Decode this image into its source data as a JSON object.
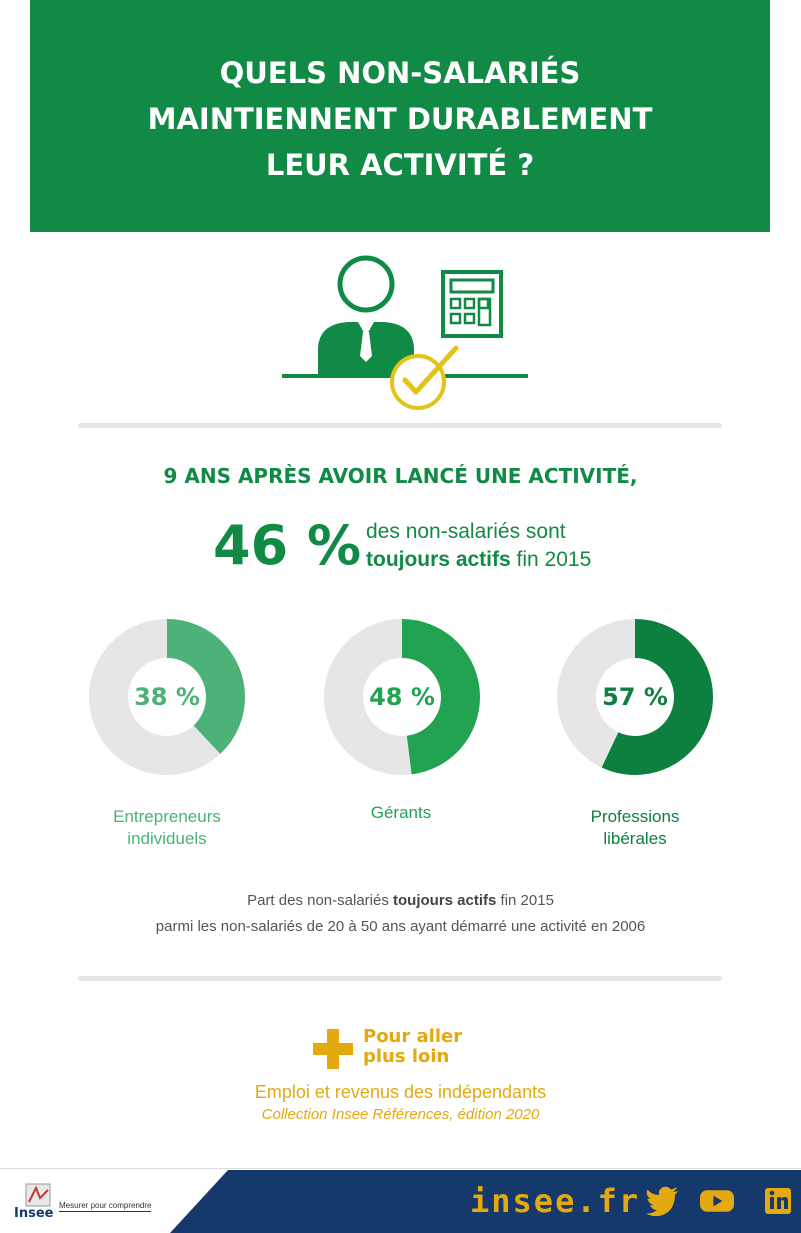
{
  "banner": {
    "title_lines": [
      "QUELS NON-SALARIÉS",
      "MAINTIENNENT DURABLEMENT",
      "LEUR ACTIVITÉ ?"
    ]
  },
  "illustration": {
    "icons": [
      "person-icon",
      "calculator-icon",
      "check-circle-icon"
    ]
  },
  "headline": {
    "lead": "9 ANS APRÈS AVOIR LANCÉ UNE ACTIVITÉ,",
    "big_value": "46 %",
    "desc_line1": "des non-salariés sont",
    "desc_bold": "toujours actifs",
    "desc_rest": " fin 2015"
  },
  "donuts": [
    {
      "value_label": "38 %",
      "value": 38,
      "label_lines": [
        "Entrepreneurs",
        "individuels"
      ],
      "color": "#4cb277"
    },
    {
      "value_label": "48 %",
      "value": 48,
      "label_lines": [
        "Gérants"
      ],
      "color": "#21a352"
    },
    {
      "value_label": "57 %",
      "value": 57,
      "label_lines": [
        "Professions",
        "libérales"
      ],
      "color": "#0d7f3f"
    }
  ],
  "caption": {
    "line1_pre": "Part des non-salariés ",
    "line1_bold": "toujours actifs",
    "line1_post": " fin 2015",
    "line2": "parmi les non-salariés de 20 à 50 ans ayant démarré une activité en 2006"
  },
  "more": {
    "title_lines": [
      "Pour aller",
      "plus loin"
    ],
    "ref_title": "Emploi et revenus des indépendants",
    "ref_sub": "Collection Insee Références, édition 2020"
  },
  "footer": {
    "logo": "Insee",
    "tagline": "Mesurer pour comprendre",
    "site": "insee.fr",
    "social_icons": [
      "twitter-icon",
      "youtube-icon",
      "linkedin-icon"
    ]
  },
  "colors": {
    "green": "#118a45",
    "yellow": "#e3a90f",
    "navy": "#15396b",
    "track": "#e6e6e6"
  }
}
